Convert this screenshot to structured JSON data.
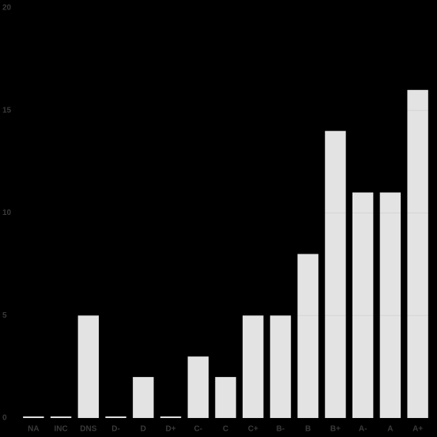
{
  "chart_data": {
    "type": "bar",
    "categories": [
      "NA",
      "INC",
      "DNS",
      "D-",
      "D",
      "D+",
      "C-",
      "C",
      "C+",
      "B-",
      "B",
      "B+",
      "A-",
      "A",
      "A+"
    ],
    "values": [
      0,
      0,
      5,
      0,
      2,
      0,
      3,
      2,
      5,
      5,
      8,
      14,
      11,
      11,
      16
    ],
    "color": "#e3e3e3",
    "ylim": [
      0,
      20
    ],
    "yticks": [
      0,
      5,
      10,
      15,
      20
    ],
    "grid": true
  }
}
